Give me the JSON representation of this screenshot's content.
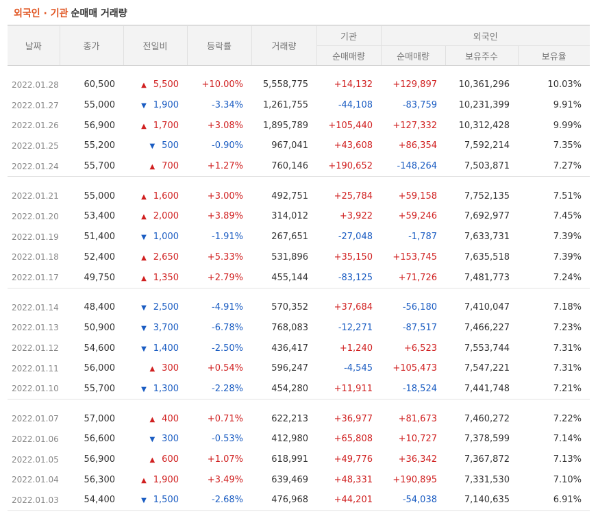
{
  "title": {
    "accent": "외국인 · 기관",
    "rest": "순매매 거래량"
  },
  "headers": {
    "date": "날짜",
    "close": "종가",
    "change": "전일비",
    "rate": "등락률",
    "volume": "거래량",
    "inst": "기관",
    "foreign": "외국인",
    "inst_net": "순매매량",
    "foreign_net": "순매매량",
    "shares": "보유주수",
    "ratio": "보유율"
  },
  "colors": {
    "up": "#d02020",
    "down": "#1a5cc2"
  },
  "groups": [
    [
      {
        "date": "2022.01.28",
        "close": "60,500",
        "dir": "up",
        "change": "5,500",
        "rate": "+10.00%",
        "volume": "5,558,775",
        "inst": "+14,132",
        "foreign": "+129,897",
        "shares": "10,361,296",
        "ratio": "10.03%"
      },
      {
        "date": "2022.01.27",
        "close": "55,000",
        "dir": "down",
        "change": "1,900",
        "rate": "-3.34%",
        "volume": "1,261,755",
        "inst": "-44,108",
        "foreign": "-83,759",
        "shares": "10,231,399",
        "ratio": "9.91%"
      },
      {
        "date": "2022.01.26",
        "close": "56,900",
        "dir": "up",
        "change": "1,700",
        "rate": "+3.08%",
        "volume": "1,895,789",
        "inst": "+105,440",
        "foreign": "+127,332",
        "shares": "10,312,428",
        "ratio": "9.99%"
      },
      {
        "date": "2022.01.25",
        "close": "55,200",
        "dir": "down",
        "change": "500",
        "rate": "-0.90%",
        "volume": "967,041",
        "inst": "+43,608",
        "foreign": "+86,354",
        "shares": "7,592,214",
        "ratio": "7.35%"
      },
      {
        "date": "2022.01.24",
        "close": "55,700",
        "dir": "up",
        "change": "700",
        "rate": "+1.27%",
        "volume": "760,146",
        "inst": "+190,652",
        "foreign": "-148,264",
        "shares": "7,503,871",
        "ratio": "7.27%"
      }
    ],
    [
      {
        "date": "2022.01.21",
        "close": "55,000",
        "dir": "up",
        "change": "1,600",
        "rate": "+3.00%",
        "volume": "492,751",
        "inst": "+25,784",
        "foreign": "+59,158",
        "shares": "7,752,135",
        "ratio": "7.51%"
      },
      {
        "date": "2022.01.20",
        "close": "53,400",
        "dir": "up",
        "change": "2,000",
        "rate": "+3.89%",
        "volume": "314,012",
        "inst": "+3,922",
        "foreign": "+59,246",
        "shares": "7,692,977",
        "ratio": "7.45%"
      },
      {
        "date": "2022.01.19",
        "close": "51,400",
        "dir": "down",
        "change": "1,000",
        "rate": "-1.91%",
        "volume": "267,651",
        "inst": "-27,048",
        "foreign": "-1,787",
        "shares": "7,633,731",
        "ratio": "7.39%"
      },
      {
        "date": "2022.01.18",
        "close": "52,400",
        "dir": "up",
        "change": "2,650",
        "rate": "+5.33%",
        "volume": "531,896",
        "inst": "+35,150",
        "foreign": "+153,745",
        "shares": "7,635,518",
        "ratio": "7.39%"
      },
      {
        "date": "2022.01.17",
        "close": "49,750",
        "dir": "up",
        "change": "1,350",
        "rate": "+2.79%",
        "volume": "455,144",
        "inst": "-83,125",
        "foreign": "+71,726",
        "shares": "7,481,773",
        "ratio": "7.24%"
      }
    ],
    [
      {
        "date": "2022.01.14",
        "close": "48,400",
        "dir": "down",
        "change": "2,500",
        "rate": "-4.91%",
        "volume": "570,352",
        "inst": "+37,684",
        "foreign": "-56,180",
        "shares": "7,410,047",
        "ratio": "7.18%"
      },
      {
        "date": "2022.01.13",
        "close": "50,900",
        "dir": "down",
        "change": "3,700",
        "rate": "-6.78%",
        "volume": "768,083",
        "inst": "-12,271",
        "foreign": "-87,517",
        "shares": "7,466,227",
        "ratio": "7.23%"
      },
      {
        "date": "2022.01.12",
        "close": "54,600",
        "dir": "down",
        "change": "1,400",
        "rate": "-2.50%",
        "volume": "436,417",
        "inst": "+1,240",
        "foreign": "+6,523",
        "shares": "7,553,744",
        "ratio": "7.31%"
      },
      {
        "date": "2022.01.11",
        "close": "56,000",
        "dir": "up",
        "change": "300",
        "rate": "+0.54%",
        "volume": "596,247",
        "inst": "-4,545",
        "foreign": "+105,473",
        "shares": "7,547,221",
        "ratio": "7.31%"
      },
      {
        "date": "2022.01.10",
        "close": "55,700",
        "dir": "down",
        "change": "1,300",
        "rate": "-2.28%",
        "volume": "454,280",
        "inst": "+11,911",
        "foreign": "-18,524",
        "shares": "7,441,748",
        "ratio": "7.21%"
      }
    ],
    [
      {
        "date": "2022.01.07",
        "close": "57,000",
        "dir": "up",
        "change": "400",
        "rate": "+0.71%",
        "volume": "622,213",
        "inst": "+36,977",
        "foreign": "+81,673",
        "shares": "7,460,272",
        "ratio": "7.22%"
      },
      {
        "date": "2022.01.06",
        "close": "56,600",
        "dir": "down",
        "change": "300",
        "rate": "-0.53%",
        "volume": "412,980",
        "inst": "+65,808",
        "foreign": "+10,727",
        "shares": "7,378,599",
        "ratio": "7.14%"
      },
      {
        "date": "2022.01.05",
        "close": "56,900",
        "dir": "up",
        "change": "600",
        "rate": "+1.07%",
        "volume": "618,991",
        "inst": "+49,776",
        "foreign": "+36,342",
        "shares": "7,367,872",
        "ratio": "7.13%"
      },
      {
        "date": "2022.01.04",
        "close": "56,300",
        "dir": "up",
        "change": "1,900",
        "rate": "+3.49%",
        "volume": "639,469",
        "inst": "+48,331",
        "foreign": "+190,895",
        "shares": "7,331,530",
        "ratio": "7.10%"
      },
      {
        "date": "2022.01.03",
        "close": "54,400",
        "dir": "down",
        "change": "1,500",
        "rate": "-2.68%",
        "volume": "476,968",
        "inst": "+44,201",
        "foreign": "-54,038",
        "shares": "7,140,635",
        "ratio": "6.91%"
      }
    ]
  ]
}
